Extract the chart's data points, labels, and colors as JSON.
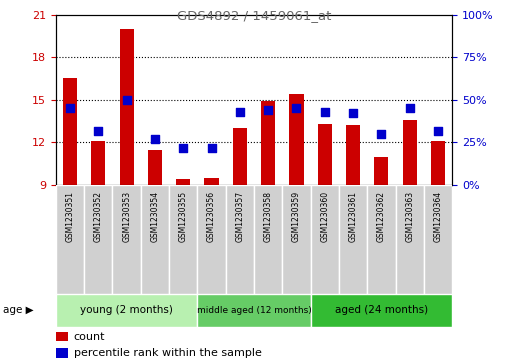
{
  "title": "GDS4892 / 1459061_at",
  "samples": [
    "GSM1230351",
    "GSM1230352",
    "GSM1230353",
    "GSM1230354",
    "GSM1230355",
    "GSM1230356",
    "GSM1230357",
    "GSM1230358",
    "GSM1230359",
    "GSM1230360",
    "GSM1230361",
    "GSM1230362",
    "GSM1230363",
    "GSM1230364"
  ],
  "counts": [
    16.5,
    12.1,
    20.0,
    11.5,
    9.4,
    9.5,
    13.0,
    14.9,
    15.4,
    13.3,
    13.2,
    11.0,
    13.6,
    12.1
  ],
  "percentiles": [
    45,
    32,
    50,
    27,
    22,
    22,
    43,
    44,
    45,
    43,
    42,
    30,
    45,
    32
  ],
  "ylim_left": [
    9,
    21
  ],
  "ylim_right": [
    0,
    100
  ],
  "yticks_left": [
    9,
    12,
    15,
    18,
    21
  ],
  "yticks_right": [
    0,
    25,
    50,
    75,
    100
  ],
  "bar_color": "#cc0000",
  "dot_color": "#0000cc",
  "groups": [
    {
      "label": "young (2 months)",
      "start": 0,
      "end": 5
    },
    {
      "label": "middle aged (12 months)",
      "start": 5,
      "end": 9
    },
    {
      "label": "aged (24 months)",
      "start": 9,
      "end": 14
    }
  ],
  "group_colors": [
    "#b8f0b0",
    "#66cc66",
    "#33bb33"
  ],
  "age_label": "age",
  "legend_count": "count",
  "legend_percentile": "percentile rank within the sample",
  "bar_width": 0.5,
  "dot_size": 35,
  "title_color": "#666666",
  "left_axis_color": "#cc0000",
  "right_axis_color": "#0000cc",
  "grid_yticks": [
    12,
    15,
    18
  ]
}
